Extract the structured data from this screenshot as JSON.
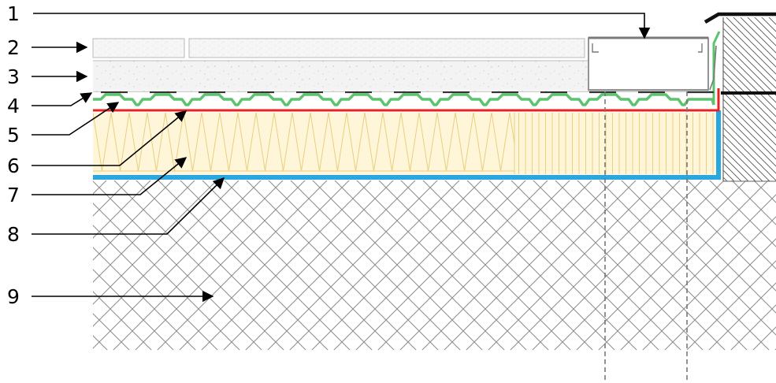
{
  "labels": [
    "1",
    "2",
    "3",
    "4",
    "5",
    "6",
    "7",
    "8",
    "9"
  ],
  "colors": {
    "membrane_green": "#5cc36e",
    "vapor_red": "#e8231f",
    "waterproof_blue": "#2aa7dd",
    "insulation_fill": "#fff6da",
    "insulation_lines": "#e7cf7e",
    "ground_hatch": "#8c8c8c",
    "ink": "#000000"
  }
}
